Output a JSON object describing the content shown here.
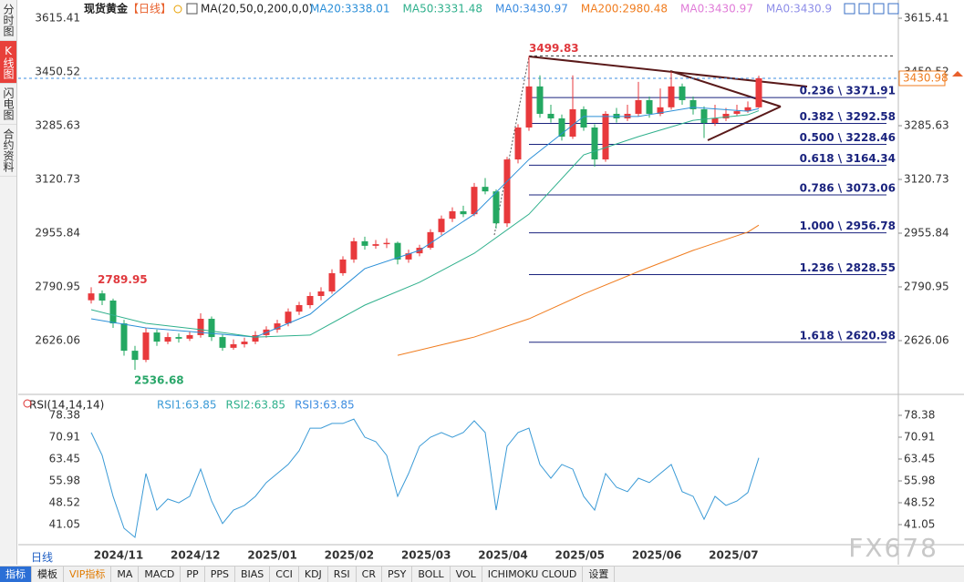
{
  "chart_data": [
    {
      "type": "candlestick",
      "title": "现货黄金",
      "period": "【日线】",
      "indicator": "MA(20,50,0,200,0,0)",
      "up_color": "#e8393c",
      "down_color": "#24a862",
      "ohlc": [
        [
          2750,
          2789.95,
          2740,
          2771
        ],
        [
          2771,
          2780,
          2735,
          2749
        ],
        [
          2749,
          2755,
          2665,
          2679
        ],
        [
          2679,
          2690,
          2580,
          2595
        ],
        [
          2595,
          2610,
          2536.68,
          2567
        ],
        [
          2567,
          2665,
          2560,
          2651
        ],
        [
          2651,
          2660,
          2610,
          2623
        ],
        [
          2623,
          2650,
          2615,
          2637
        ],
        [
          2637,
          2648,
          2620,
          2632
        ],
        [
          2632,
          2655,
          2625,
          2643
        ],
        [
          2643,
          2710,
          2635,
          2693
        ],
        [
          2693,
          2700,
          2625,
          2637
        ],
        [
          2637,
          2645,
          2595,
          2604
        ],
        [
          2604,
          2630,
          2598,
          2615
        ],
        [
          2615,
          2635,
          2605,
          2623
        ],
        [
          2623,
          2655,
          2615,
          2643
        ],
        [
          2643,
          2670,
          2635,
          2660
        ],
        [
          2660,
          2690,
          2650,
          2679
        ],
        [
          2679,
          2725,
          2670,
          2715
        ],
        [
          2715,
          2745,
          2705,
          2735
        ],
        [
          2735,
          2775,
          2725,
          2763
        ],
        [
          2763,
          2790,
          2750,
          2777
        ],
        [
          2777,
          2845,
          2770,
          2833
        ],
        [
          2833,
          2885,
          2825,
          2875
        ],
        [
          2875,
          2942,
          2865,
          2931
        ],
        [
          2931,
          2945,
          2905,
          2917
        ],
        [
          2917,
          2935,
          2908,
          2922
        ],
        [
          2922,
          2940,
          2910,
          2926
        ],
        [
          2926,
          2930,
          2860,
          2875
        ],
        [
          2875,
          2905,
          2865,
          2894
        ],
        [
          2894,
          2920,
          2885,
          2911
        ],
        [
          2911,
          2968,
          2905,
          2959
        ],
        [
          2959,
          3010,
          2950,
          3000
        ],
        [
          3000,
          3035,
          2990,
          3023
        ],
        [
          3023,
          3040,
          3005,
          3014
        ],
        [
          3014,
          3110,
          3008,
          3098
        ],
        [
          3098,
          3125,
          3075,
          3084
        ],
        [
          3084,
          3090,
          2970,
          2986
        ],
        [
          2986,
          3190,
          2975,
          3182
        ],
        [
          3182,
          3290,
          3170,
          3280
        ],
        [
          3280,
          3499.83,
          3270,
          3406
        ],
        [
          3406,
          3440,
          3310,
          3322
        ],
        [
          3322,
          3350,
          3295,
          3308
        ],
        [
          3308,
          3320,
          3240,
          3252
        ],
        [
          3252,
          3440,
          3245,
          3336
        ],
        [
          3336,
          3345,
          3270,
          3280
        ],
        [
          3280,
          3290,
          3160,
          3182
        ],
        [
          3182,
          3330,
          3175,
          3322
        ],
        [
          3322,
          3340,
          3295,
          3308
        ],
        [
          3308,
          3350,
          3300,
          3322
        ],
        [
          3322,
          3420,
          3315,
          3364
        ],
        [
          3364,
          3375,
          3310,
          3322
        ],
        [
          3322,
          3400,
          3315,
          3342
        ],
        [
          3342,
          3452,
          3335,
          3406
        ],
        [
          3406,
          3415,
          3350,
          3364
        ],
        [
          3364,
          3375,
          3320,
          3336
        ],
        [
          3336,
          3345,
          3248,
          3294
        ],
        [
          3294,
          3350,
          3285,
          3308
        ],
        [
          3308,
          3340,
          3300,
          3322
        ],
        [
          3322,
          3350,
          3315,
          3330
        ],
        [
          3330,
          3360,
          3325,
          3342
        ],
        [
          3342,
          3439,
          3340,
          3430.98
        ]
      ],
      "series": [
        {
          "name": "MA20:3338.01",
          "color": "#2b8fd8",
          "x": [
            0,
            5,
            10,
            15,
            20,
            25,
            30,
            35,
            40,
            45,
            50,
            55,
            60,
            61
          ],
          "values": [
            2693,
            2665,
            2651,
            2637,
            2707,
            2847,
            2903,
            3014,
            3182,
            3314,
            3314,
            3342,
            3330,
            3338.01
          ]
        },
        {
          "name": "MA50:3331.48",
          "color": "#2fb08c",
          "x": [
            0,
            5,
            10,
            15,
            20,
            25,
            30,
            35,
            40,
            45,
            50,
            55,
            60,
            61
          ],
          "values": [
            2721,
            2679,
            2660,
            2637,
            2643,
            2735,
            2805,
            2894,
            3014,
            3196,
            3252,
            3302,
            3319,
            3331.48
          ]
        },
        {
          "name": "MA200:2980.48",
          "color": "#f07c1e",
          "x": [
            28,
            35,
            40,
            45,
            50,
            55,
            60,
            61
          ],
          "values": [
            2581,
            2637,
            2693,
            2769,
            2838,
            2903,
            2959,
            2980.48
          ]
        }
      ],
      "extra_legend": [
        {
          "name": "MA0:3430.97",
          "color": "#3c8ce0"
        },
        {
          "name": "MA0:3430.97",
          "color": "#e07cd8"
        },
        {
          "name": "MA0:3430.9",
          "color": "#8e8ee8"
        }
      ],
      "ylim": [
        2463.9,
        3671.3
      ],
      "yticks": [
        3615.41,
        3450.52,
        3285.63,
        3120.73,
        2955.84,
        2790.95,
        2626.06
      ],
      "annotations": [
        3499.83,
        2789.95,
        2536.68
      ],
      "last_price": 3430.98,
      "fib_levels": [
        {
          "value": 3371.91,
          "label": "0.236 \\ 3371.91"
        },
        {
          "value": 3292.58,
          "label": "0.382 \\ 3292.58"
        },
        {
          "value": 3228.46,
          "label": "0.500 \\ 3228.46"
        },
        {
          "value": 3164.34,
          "label": "0.618 \\ 3164.34"
        },
        {
          "value": 3073.06,
          "label": "0.786 \\ 3073.06"
        },
        {
          "value": 2956.78,
          "label": "1.000 \\ 2956.78"
        },
        {
          "value": 2828.55,
          "label": "1.236 \\ 2828.55"
        },
        {
          "value": 2620.98,
          "label": "1.618 \\ 2620.98"
        }
      ]
    },
    {
      "type": "line",
      "title": "RSI(14,14,14)",
      "series": [
        {
          "name": "RSI1:63.85",
          "color": "#3a9ad6",
          "values": [
            72.5,
            64.7,
            50.7,
            39.8,
            36.7,
            58.5,
            46,
            49.8,
            48.5,
            50.7,
            60,
            49.1,
            41.4,
            46,
            47.6,
            50.7,
            55.4,
            58.5,
            61.6,
            66.3,
            74,
            74,
            75.6,
            75.6,
            77.1,
            70.9,
            69.4,
            64.7,
            50.7,
            58.5,
            67.8,
            70.9,
            72.5,
            70.9,
            72.5,
            76.5,
            72.5,
            46,
            67.8,
            72.5,
            74,
            61.6,
            56.9,
            61.6,
            60,
            50.7,
            46,
            58.5,
            53.8,
            52.3,
            56.9,
            55.4,
            58.5,
            61.6,
            52.3,
            50.7,
            42.9,
            50.7,
            47.6,
            49.1,
            52,
            63.85
          ]
        },
        {
          "name": "RSI2:63.85",
          "color": "#2fb08c"
        },
        {
          "name": "RSI3:63.85",
          "color": "#3c8ce0"
        }
      ],
      "ylim": [
        34.2,
        84.6
      ],
      "yticks": [
        78.38,
        70.91,
        63.45,
        55.98,
        48.52,
        41.05
      ],
      "time_labels": [
        "2024/11",
        "2024/12",
        "2025/01",
        "2025/02",
        "2025/03",
        "2025/04",
        "2025/05",
        "2025/06",
        "2025/07"
      ]
    }
  ],
  "ui": {
    "sidebar": [
      "分时图",
      "K线图",
      "闪电图",
      "合约资料"
    ],
    "active_tab": 1,
    "period_button": "日线",
    "toolbar": [
      "指标",
      "模板",
      "VIP指标",
      "MA",
      "MACD",
      "PP",
      "PPS",
      "BIAS",
      "CCI",
      "KDJ",
      "RSI",
      "CR",
      "PSY",
      "BOLL",
      "VOL",
      "ICHIMOKU CLOUD",
      "设置"
    ],
    "watermark": "FX678"
  }
}
